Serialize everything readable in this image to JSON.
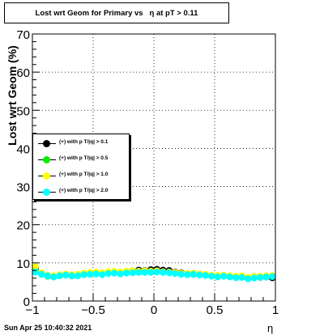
{
  "chart_data": {
    "type": "scatter",
    "title": "Lost wrt Geom for Primary vs   η at pT > 0.11",
    "xlabel": "η",
    "ylabel": "Lost wrt Geom (%)",
    "xlim": [
      -1,
      1
    ],
    "ylim": [
      0,
      70
    ],
    "x_ticks": [
      "−1",
      "−0.5",
      "0",
      "0.5",
      "1"
    ],
    "y_ticks": [
      "0",
      "10",
      "20",
      "30",
      "40",
      "50",
      "60",
      "70"
    ],
    "grid": true,
    "legend_placement": "left-middle",
    "x": [
      -0.975,
      -0.925,
      -0.875,
      -0.825,
      -0.775,
      -0.725,
      -0.675,
      -0.625,
      -0.575,
      -0.525,
      -0.475,
      -0.425,
      -0.375,
      -0.325,
      -0.275,
      -0.225,
      -0.175,
      -0.125,
      -0.075,
      -0.025,
      0.025,
      0.075,
      0.125,
      0.175,
      0.225,
      0.275,
      0.325,
      0.375,
      0.425,
      0.475,
      0.525,
      0.575,
      0.625,
      0.675,
      0.725,
      0.775,
      0.825,
      0.875,
      0.925,
      0.975
    ],
    "series": [
      {
        "name": "(+) with p T/|q| > 0.1",
        "color": "#000000",
        "values": [
          8.5,
          7.2,
          6.6,
          6.4,
          6.7,
          6.9,
          6.6,
          6.8,
          7.0,
          7.2,
          7.3,
          7.1,
          7.4,
          7.6,
          7.3,
          7.5,
          7.9,
          8.1,
          8.0,
          8.2,
          8.3,
          8.1,
          8.0,
          7.6,
          7.4,
          7.2,
          7.0,
          7.1,
          6.9,
          6.6,
          6.4,
          6.7,
          6.5,
          6.2,
          6.3,
          6.0,
          6.4,
          6.2,
          6.3,
          6.1
        ]
      },
      {
        "name": "(+) with p T/|q| > 0.5",
        "color": "#00ee00",
        "values": [
          7.8,
          7.0,
          6.5,
          6.3,
          6.6,
          6.8,
          6.7,
          6.7,
          7.0,
          7.1,
          7.3,
          7.0,
          7.3,
          7.5,
          7.2,
          7.4,
          7.6,
          7.7,
          7.8,
          7.7,
          7.8,
          7.6,
          7.5,
          7.3,
          7.1,
          7.0,
          7.1,
          6.9,
          6.8,
          6.6,
          6.4,
          6.6,
          6.4,
          6.2,
          6.3,
          5.9,
          6.1,
          6.3,
          6.4,
          6.4
        ]
      },
      {
        "name": "(+) with p T/|q| > 1.0",
        "color": "#ffff00",
        "values": [
          9.0,
          7.4,
          6.8,
          6.6,
          6.9,
          7.1,
          6.9,
          7.0,
          7.3,
          7.5,
          7.6,
          7.4,
          7.7,
          7.8,
          7.6,
          7.8,
          7.9,
          7.8,
          7.9,
          7.8,
          7.9,
          7.7,
          7.6,
          7.5,
          7.3,
          7.2,
          7.3,
          7.1,
          7.0,
          6.8,
          6.7,
          6.8,
          6.6,
          6.5,
          6.6,
          6.2,
          6.4,
          6.5,
          6.6,
          6.7
        ]
      },
      {
        "name": "(+) with p T/|q| > 2.0",
        "color": "#00ffff",
        "values": [
          7.6,
          7.0,
          6.6,
          6.3,
          6.6,
          6.8,
          6.6,
          6.6,
          6.9,
          7.0,
          7.1,
          6.9,
          7.2,
          7.3,
          7.1,
          7.3,
          7.4,
          7.5,
          7.5,
          7.5,
          7.6,
          7.5,
          7.4,
          7.2,
          7.0,
          6.9,
          7.0,
          6.8,
          6.7,
          6.5,
          6.3,
          6.5,
          6.3,
          6.1,
          6.2,
          5.8,
          6.0,
          6.2,
          6.3,
          6.4
        ]
      }
    ]
  },
  "footer": {
    "timestamp": "Sun Apr 25 10:40:32 2021"
  }
}
